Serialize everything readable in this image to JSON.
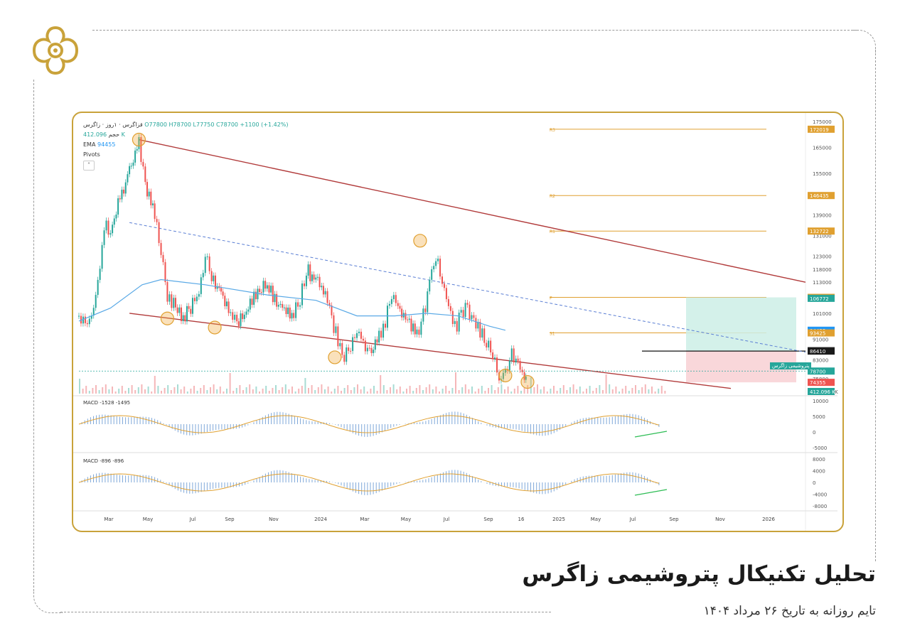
{
  "title": "تحلیل تکنیکال  پتروشیمی زاگرس",
  "subtitle": "تایم روزانه به تاریخ ۲۶ مرداد ۱۴۰۴",
  "colors": {
    "gold": "#c9a23a",
    "up": "#26a69a",
    "down": "#ef5350",
    "ema": "#5aa9e6",
    "channel": "#b13a3a",
    "pivot": "#e0a030"
  },
  "chart_data": {
    "type": "candlestick",
    "header": {
      "symbol": "قزاگرس · ۱روز · زاگرس",
      "ohlc": "O77800 H78700 L77750 C78700 +1100 (+1.42%)",
      "volume_label": "حجم",
      "volume_value": "412.096 K",
      "ema_label": "EMA",
      "ema_value": "94455",
      "pivots_label": "Pivots"
    },
    "price_axis": [
      "175000",
      "165000",
      "155000",
      "146435",
      "139000",
      "131000",
      "123000",
      "118000",
      "113000",
      "107138",
      "101000",
      "94455",
      "91000",
      "86410",
      "83000",
      "78700",
      "75800",
      "74355",
      "412.096 K"
    ],
    "price_tags": [
      {
        "label": "172019",
        "color": "#e0a030"
      },
      {
        "label": "146435",
        "color": "#e0a030"
      },
      {
        "label": "132722",
        "color": "#e0a030"
      },
      {
        "label": "107138",
        "color": "#e0a030"
      },
      {
        "label": "106772",
        "color": "#26a69a"
      },
      {
        "label": "94455",
        "color": "#2196f3"
      },
      {
        "label": "93425",
        "color": "#e0a030"
      },
      {
        "label": "86606",
        "color": "#555555"
      },
      {
        "label": "86410",
        "color": "#1a1a1a"
      },
      {
        "label": "78700",
        "color": "#26a69a"
      },
      {
        "label": "74355",
        "color": "#ef5350"
      },
      {
        "label": "412.096 K",
        "color": "#26a69a"
      }
    ],
    "pivot_levels": [
      {
        "name": "R3",
        "value": 172019
      },
      {
        "name": "R2",
        "value": 146435
      },
      {
        "name": "R1",
        "value": 132722
      },
      {
        "name": "P",
        "value": 107138
      },
      {
        "name": "S1",
        "value": 93425
      }
    ],
    "last_price_label": "پتروشیمی زاگرس",
    "x_ticks": [
      "Mar",
      "May",
      "Jul",
      "Sep",
      "Nov",
      "2024",
      "Mar",
      "May",
      "Jul",
      "Sep",
      "16",
      "2025",
      "May",
      "Jul",
      "Sep",
      "Nov",
      "2026"
    ],
    "price_series": [
      {
        "t": 0,
        "p": 100000
      },
      {
        "t": 2,
        "p": 97000
      },
      {
        "t": 4,
        "p": 99000
      },
      {
        "t": 6,
        "p": 112000
      },
      {
        "t": 8,
        "p": 135000
      },
      {
        "t": 10,
        "p": 132000
      },
      {
        "t": 13,
        "p": 145000
      },
      {
        "t": 16,
        "p": 155000
      },
      {
        "t": 19,
        "p": 168000
      },
      {
        "t": 21,
        "p": 150000
      },
      {
        "t": 24,
        "p": 140000
      },
      {
        "t": 26,
        "p": 125000
      },
      {
        "t": 28,
        "p": 108000
      },
      {
        "t": 30,
        "p": 104000
      },
      {
        "t": 33,
        "p": 99000
      },
      {
        "t": 36,
        "p": 104000
      },
      {
        "t": 38,
        "p": 110000
      },
      {
        "t": 40,
        "p": 124000
      },
      {
        "t": 42,
        "p": 115000
      },
      {
        "t": 45,
        "p": 107000
      },
      {
        "t": 48,
        "p": 101000
      },
      {
        "t": 50,
        "p": 97000
      },
      {
        "t": 53,
        "p": 103000
      },
      {
        "t": 56,
        "p": 108000
      },
      {
        "t": 59,
        "p": 113000
      },
      {
        "t": 62,
        "p": 106000
      },
      {
        "t": 65,
        "p": 103000
      },
      {
        "t": 68,
        "p": 101000
      },
      {
        "t": 70,
        "p": 106000
      },
      {
        "t": 72,
        "p": 118000
      },
      {
        "t": 75,
        "p": 113000
      },
      {
        "t": 78,
        "p": 109000
      },
      {
        "t": 80,
        "p": 98000
      },
      {
        "t": 82,
        "p": 91000
      },
      {
        "t": 84,
        "p": 85000
      },
      {
        "t": 86,
        "p": 88000
      },
      {
        "t": 88,
        "p": 95000
      },
      {
        "t": 90,
        "p": 88000
      },
      {
        "t": 92,
        "p": 86000
      },
      {
        "t": 95,
        "p": 92000
      },
      {
        "t": 97,
        "p": 98000
      },
      {
        "t": 99,
        "p": 108000
      },
      {
        "t": 101,
        "p": 104000
      },
      {
        "t": 104,
        "p": 97000
      },
      {
        "t": 107,
        "p": 93000
      },
      {
        "t": 109,
        "p": 100000
      },
      {
        "t": 111,
        "p": 112000
      },
      {
        "t": 113,
        "p": 124000
      },
      {
        "t": 115,
        "p": 114000
      },
      {
        "t": 117,
        "p": 104000
      },
      {
        "t": 119,
        "p": 95000
      },
      {
        "t": 121,
        "p": 100000
      },
      {
        "t": 123,
        "p": 104000
      },
      {
        "t": 125,
        "p": 97000
      },
      {
        "t": 127,
        "p": 94000
      },
      {
        "t": 129,
        "p": 90000
      },
      {
        "t": 131,
        "p": 84000
      },
      {
        "t": 133,
        "p": 78000
      },
      {
        "t": 135,
        "p": 77000
      },
      {
        "t": 137,
        "p": 85000
      },
      {
        "t": 139,
        "p": 82000
      },
      {
        "t": 141,
        "p": 76000
      },
      {
        "t": 142,
        "p": 78700
      }
    ],
    "ema_series": [
      {
        "t": 0,
        "p": 98000
      },
      {
        "t": 10,
        "p": 103000
      },
      {
        "t": 20,
        "p": 112000
      },
      {
        "t": 26,
        "p": 114000
      },
      {
        "t": 40,
        "p": 112000
      },
      {
        "t": 60,
        "p": 108000
      },
      {
        "t": 75,
        "p": 106000
      },
      {
        "t": 88,
        "p": 100000
      },
      {
        "t": 100,
        "p": 100000
      },
      {
        "t": 110,
        "p": 101000
      },
      {
        "t": 120,
        "p": 100000
      },
      {
        "t": 130,
        "p": 96000
      },
      {
        "t": 135,
        "p": 94455
      }
    ],
    "trade_box": {
      "entry": 86410,
      "target": 107138,
      "stop": 74355
    },
    "macd_1": {
      "label": "MACD",
      "values": [
        "-1528",
        "-1495"
      ],
      "axis": [
        "10000",
        "5000",
        "0",
        "-5000"
      ]
    },
    "macd_2": {
      "label": "MACD",
      "values": [
        "-896",
        "-896"
      ],
      "axis": [
        "8000",
        "4000",
        "0",
        "-4000",
        "-8000"
      ]
    }
  }
}
